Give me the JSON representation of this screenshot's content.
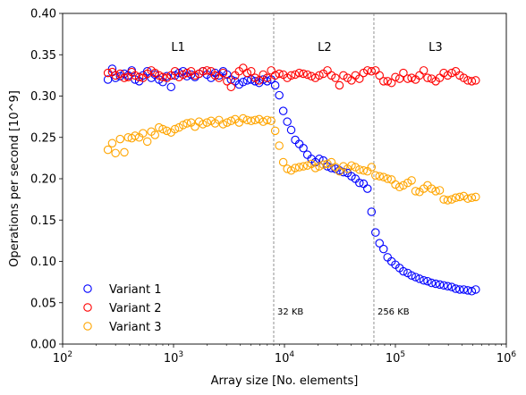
{
  "chart_data": {
    "type": "scatter",
    "xlabel": "Array size [No. elements]",
    "ylabel": "Operations per second [10^9]",
    "xscale": "log",
    "xlim": [
      100,
      1000000
    ],
    "ylim": [
      0.0,
      0.4
    ],
    "xticks": [
      100,
      1000,
      10000,
      100000,
      1000000
    ],
    "xtick_labels": [
      {
        "base": "10",
        "exp": "2"
      },
      {
        "base": "10",
        "exp": "3"
      },
      {
        "base": "10",
        "exp": "4"
      },
      {
        "base": "10",
        "exp": "5"
      },
      {
        "base": "10",
        "exp": "6"
      }
    ],
    "yticks": [
      0.0,
      0.05,
      0.1,
      0.15,
      0.2,
      0.25,
      0.3,
      0.35,
      0.4
    ],
    "ytick_labels": [
      "0.00",
      "0.05",
      "0.10",
      "0.15",
      "0.20",
      "0.25",
      "0.30",
      "0.35",
      "0.40"
    ],
    "grid": false,
    "legend_position": "bottom-left",
    "vlines": [
      {
        "x": 8000,
        "label": "32 KB"
      },
      {
        "x": 64000,
        "label": "256 KB"
      }
    ],
    "regions": [
      {
        "label": "L1",
        "x": 1100
      },
      {
        "label": "L2",
        "x": 23000
      },
      {
        "label": "L3",
        "x": 230000
      }
    ],
    "series": [
      {
        "name": "Variant 1",
        "color": "#0000ff",
        "x": [
          256,
          280,
          300,
          330,
          360,
          390,
          420,
          450,
          490,
          530,
          580,
          630,
          680,
          740,
          800,
          870,
          950,
          1030,
          1120,
          1220,
          1320,
          1440,
          1560,
          1700,
          1840,
          2000,
          2180,
          2370,
          2570,
          2800,
          3040,
          3300,
          3590,
          3900,
          4240,
          4610,
          5010,
          5440,
          5910,
          6430,
          6990,
          7590,
          8250,
          8970,
          9750,
          10600,
          11500,
          12500,
          13600,
          14800,
          16100,
          17500,
          19000,
          20600,
          22400,
          24400,
          26500,
          28800,
          31300,
          34000,
          37000,
          40200,
          43600,
          47400,
          51600,
          56000,
          60900,
          66200,
          71900,
          78200,
          85000,
          92300,
          100000,
          109000,
          118000,
          129000,
          140000,
          152000,
          165000,
          180000,
          195000,
          212000,
          231000,
          251000,
          273000,
          296000,
          322000,
          350000,
          380000,
          413000,
          449000,
          488000,
          530000
        ],
        "y": [
          0.32,
          0.333,
          0.322,
          0.324,
          0.327,
          0.325,
          0.331,
          0.32,
          0.318,
          0.325,
          0.33,
          0.322,
          0.326,
          0.32,
          0.317,
          0.324,
          0.311,
          0.325,
          0.328,
          0.33,
          0.324,
          0.326,
          0.323,
          0.327,
          0.33,
          0.326,
          0.322,
          0.328,
          0.325,
          0.33,
          0.326,
          0.32,
          0.318,
          0.314,
          0.317,
          0.319,
          0.32,
          0.318,
          0.316,
          0.32,
          0.318,
          0.32,
          0.313,
          0.301,
          0.282,
          0.269,
          0.259,
          0.247,
          0.242,
          0.237,
          0.229,
          0.224,
          0.22,
          0.224,
          0.222,
          0.215,
          0.213,
          0.212,
          0.21,
          0.208,
          0.207,
          0.203,
          0.2,
          0.195,
          0.194,
          0.188,
          0.16,
          0.135,
          0.122,
          0.115,
          0.105,
          0.1,
          0.096,
          0.092,
          0.088,
          0.086,
          0.083,
          0.081,
          0.079,
          0.077,
          0.076,
          0.074,
          0.073,
          0.072,
          0.071,
          0.07,
          0.069,
          0.067,
          0.066,
          0.066,
          0.065,
          0.064,
          0.066
        ]
      },
      {
        "name": "Variant 2",
        "color": "#ff0000",
        "x": [
          256,
          280,
          300,
          330,
          360,
          390,
          420,
          450,
          490,
          530,
          580,
          630,
          680,
          740,
          800,
          870,
          950,
          1030,
          1120,
          1220,
          1320,
          1440,
          1560,
          1700,
          1840,
          2000,
          2180,
          2370,
          2570,
          2800,
          3040,
          3300,
          3590,
          3900,
          4240,
          4610,
          5010,
          5440,
          5910,
          6430,
          6990,
          7590,
          8250,
          8970,
          9750,
          10600,
          11500,
          12500,
          13600,
          14800,
          16100,
          17500,
          19000,
          20600,
          22400,
          24400,
          26500,
          28800,
          31300,
          34000,
          37000,
          40200,
          43600,
          47400,
          51600,
          56000,
          60900,
          66200,
          71900,
          78200,
          85000,
          92300,
          100000,
          109000,
          118000,
          129000,
          140000,
          152000,
          165000,
          180000,
          195000,
          212000,
          231000,
          251000,
          273000,
          296000,
          322000,
          350000,
          380000,
          413000,
          449000,
          488000,
          530000
        ],
        "y": [
          0.328,
          0.329,
          0.325,
          0.327,
          0.322,
          0.323,
          0.329,
          0.325,
          0.323,
          0.322,
          0.327,
          0.331,
          0.328,
          0.325,
          0.323,
          0.322,
          0.325,
          0.33,
          0.323,
          0.326,
          0.328,
          0.33,
          0.325,
          0.327,
          0.33,
          0.331,
          0.33,
          0.325,
          0.322,
          0.328,
          0.318,
          0.311,
          0.325,
          0.33,
          0.334,
          0.328,
          0.33,
          0.322,
          0.319,
          0.326,
          0.322,
          0.331,
          0.325,
          0.327,
          0.326,
          0.322,
          0.325,
          0.326,
          0.328,
          0.327,
          0.326,
          0.324,
          0.322,
          0.325,
          0.327,
          0.331,
          0.325,
          0.322,
          0.313,
          0.325,
          0.322,
          0.319,
          0.325,
          0.321,
          0.328,
          0.331,
          0.33,
          0.331,
          0.325,
          0.318,
          0.318,
          0.316,
          0.323,
          0.321,
          0.328,
          0.321,
          0.322,
          0.32,
          0.325,
          0.331,
          0.322,
          0.321,
          0.318,
          0.322,
          0.328,
          0.325,
          0.328,
          0.33,
          0.325,
          0.322,
          0.319,
          0.318,
          0.319
        ]
      },
      {
        "name": "Variant 3",
        "color": "#ffa500",
        "x": [
          256,
          280,
          300,
          330,
          360,
          390,
          420,
          450,
          490,
          530,
          580,
          630,
          680,
          740,
          800,
          870,
          950,
          1030,
          1120,
          1220,
          1320,
          1440,
          1560,
          1700,
          1840,
          2000,
          2180,
          2370,
          2570,
          2800,
          3040,
          3300,
          3590,
          3900,
          4240,
          4610,
          5010,
          5440,
          5910,
          6430,
          6990,
          7590,
          8250,
          8970,
          9750,
          10600,
          11500,
          12500,
          13600,
          14800,
          16100,
          17500,
          19000,
          20600,
          22400,
          24400,
          26500,
          28800,
          31300,
          34000,
          37000,
          40200,
          43600,
          47400,
          51600,
          56000,
          60900,
          66200,
          71900,
          78200,
          85000,
          92300,
          100000,
          109000,
          118000,
          129000,
          140000,
          152000,
          165000,
          180000,
          195000,
          212000,
          231000,
          251000,
          273000,
          296000,
          322000,
          350000,
          380000,
          413000,
          449000,
          488000,
          530000
        ],
        "y": [
          0.235,
          0.243,
          0.231,
          0.248,
          0.232,
          0.25,
          0.249,
          0.252,
          0.25,
          0.255,
          0.245,
          0.257,
          0.253,
          0.262,
          0.26,
          0.258,
          0.256,
          0.26,
          0.262,
          0.265,
          0.267,
          0.268,
          0.263,
          0.269,
          0.266,
          0.268,
          0.27,
          0.267,
          0.271,
          0.266,
          0.268,
          0.27,
          0.272,
          0.268,
          0.273,
          0.271,
          0.27,
          0.271,
          0.272,
          0.269,
          0.271,
          0.27,
          0.258,
          0.24,
          0.22,
          0.212,
          0.21,
          0.213,
          0.214,
          0.215,
          0.216,
          0.218,
          0.213,
          0.215,
          0.217,
          0.218,
          0.22,
          0.214,
          0.209,
          0.215,
          0.212,
          0.216,
          0.214,
          0.211,
          0.21,
          0.209,
          0.214,
          0.204,
          0.203,
          0.202,
          0.2,
          0.199,
          0.193,
          0.19,
          0.192,
          0.195,
          0.198,
          0.185,
          0.184,
          0.188,
          0.192,
          0.188,
          0.185,
          0.186,
          0.175,
          0.174,
          0.175,
          0.177,
          0.178,
          0.179,
          0.176,
          0.177,
          0.178
        ]
      }
    ]
  }
}
